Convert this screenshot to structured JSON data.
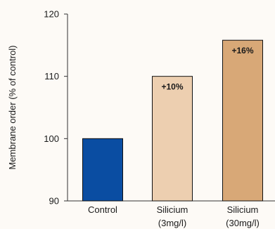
{
  "chart_data": {
    "type": "bar",
    "title": "",
    "xlabel": "",
    "ylabel": "Membrane order (% of control)",
    "ylim": [
      90,
      120
    ],
    "yticks": [
      "90",
      "100",
      "110",
      "120"
    ],
    "grid": false,
    "categories": [
      {
        "line1": "Control",
        "line2": ""
      },
      {
        "line1": "Silicium",
        "line2": "(3mg/l)"
      },
      {
        "line1": "Silicium",
        "line2": "(30mg/l)"
      }
    ],
    "values": [
      100,
      110,
      115.8
    ],
    "colors": [
      "#0a4da2",
      "#edcfb0",
      "#d8a877"
    ],
    "annotations": [
      "",
      "+10%",
      "+16%"
    ]
  }
}
